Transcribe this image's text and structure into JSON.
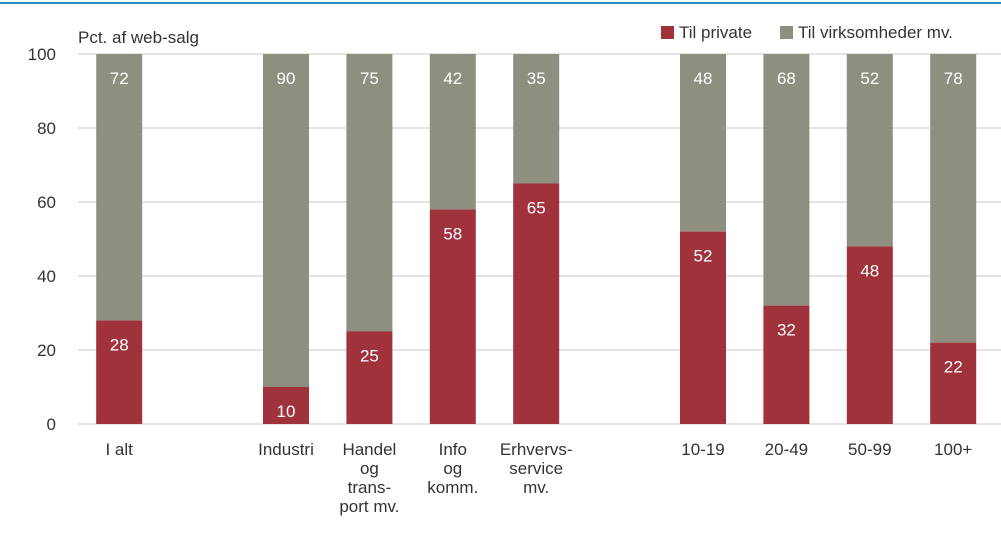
{
  "chart_data": {
    "type": "bar",
    "stacked": true,
    "ylabel": "Pct. af web-salg",
    "ylim": [
      0,
      100
    ],
    "yticks": [
      0,
      20,
      40,
      60,
      80,
      100
    ],
    "grid": true,
    "legend_position": "top-right",
    "categories": [
      [
        "I alt"
      ],
      [],
      [
        "Industri"
      ],
      [
        "Handel",
        "og",
        "trans-",
        "port mv."
      ],
      [
        "Info",
        "og",
        "komm."
      ],
      [
        "Erhvervs-",
        "service",
        "mv."
      ],
      [],
      [
        "10-19"
      ],
      [
        "20-49"
      ],
      [
        "50-99"
      ],
      [
        "100+"
      ]
    ],
    "series": [
      {
        "name": "Til private",
        "color": "#a0323c",
        "values": [
          28,
          null,
          10,
          25,
          58,
          65,
          null,
          52,
          32,
          48,
          22
        ]
      },
      {
        "name": "Til virksomheder mv.",
        "color": "#8f8f80",
        "values": [
          72,
          null,
          90,
          75,
          42,
          35,
          null,
          48,
          68,
          52,
          78
        ]
      }
    ]
  },
  "colors": {
    "top_rule": "#2b8fc7",
    "gridline": "#c8c8c8",
    "axis_text": "#333333",
    "bar_label": "#ffffff"
  }
}
